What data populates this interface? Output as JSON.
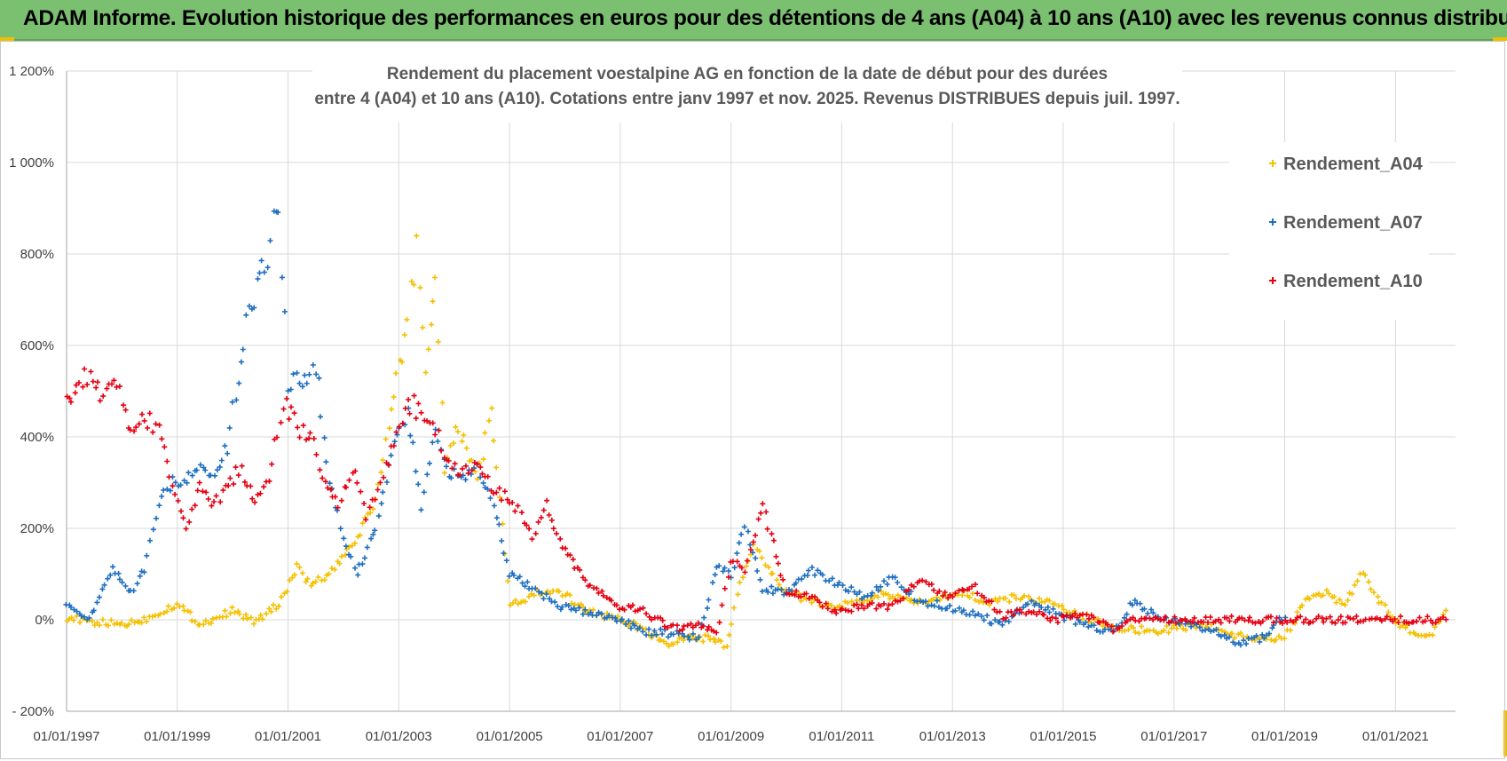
{
  "banner": {
    "text": "ADAM Informe. Evolution historique des performances en euros pour des détentions de 4 ans (A04) à 10 ans (A10) avec les revenus connus distribués"
  },
  "colors": {
    "banner_bg": "#7ac070",
    "Rendement_A04": "#f5c000",
    "Rendement_A07": "#1f6fc0",
    "Rendement_A10": "#e60012",
    "gridline": "#d9d9d9"
  },
  "chart_data": {
    "type": "scatter",
    "marker": "+",
    "title": [
      "Rendement du placement voestalpine AG en fonction de la date de début pour des durées",
      "entre 4 (A04) et 10 ans (A10). Cotations entre janv 1997 et nov. 2025. Revenus DISTRIBUES depuis juil. 1997."
    ],
    "xlabel": "",
    "ylabel": "",
    "x_range": [
      "1997-01-01",
      "2022-02-01"
    ],
    "ylim": [
      -200,
      1200
    ],
    "y_unit": "%",
    "y_ticks": [
      -200,
      0,
      200,
      400,
      600,
      800,
      1000,
      1200
    ],
    "y_tick_labels": [
      "- 200%",
      "0%",
      "200%",
      "400%",
      "600%",
      "800%",
      "1 000%",
      "1 200%"
    ],
    "x_ticks": [
      "1997-01-01",
      "1999-01-01",
      "2001-01-01",
      "2003-01-01",
      "2005-01-01",
      "2007-01-01",
      "2009-01-01",
      "2011-01-01",
      "2013-01-01",
      "2015-01-01",
      "2017-01-01",
      "2019-01-01",
      "2021-01-01"
    ],
    "x_tick_labels": [
      "01/01/1997",
      "01/01/1999",
      "01/01/2001",
      "01/01/2003",
      "01/01/2005",
      "01/01/2007",
      "01/01/2009",
      "01/01/2011",
      "01/01/2013",
      "01/01/2015",
      "01/01/2017",
      "01/01/2019",
      "01/01/2021"
    ],
    "grid": true,
    "legend_position": "top-right",
    "series": [
      {
        "name": "Rendement_A04",
        "x": [
          "1997-01-01",
          "1997-06-01",
          "1998-01-01",
          "1998-06-01",
          "1999-01-01",
          "1999-06-01",
          "2000-01-01",
          "2000-06-01",
          "2000-11-01",
          "2001-03-01",
          "2001-06-01",
          "2001-10-01",
          "2002-03-01",
          "2002-08-01",
          "2002-12-01",
          "2003-03-01",
          "2003-05-01",
          "2003-07-01",
          "2003-09-01",
          "2003-11-01",
          "2004-02-01",
          "2004-06-01",
          "2004-09-01",
          "2004-12-01",
          "2005-01-01",
          "2005-04-01",
          "2005-07-01",
          "2006-01-01",
          "2006-06-01",
          "2007-01-01",
          "2007-06-01",
          "2007-11-01",
          "2008-04-01",
          "2008-08-01",
          "2008-12-01",
          "2009-03-01",
          "2009-06-01",
          "2009-12-01",
          "2010-06-01",
          "2010-12-01",
          "2011-06-01",
          "2011-10-01",
          "2012-03-01",
          "2012-09-01",
          "2013-03-01",
          "2013-09-01",
          "2014-03-01",
          "2014-09-01",
          "2015-03-01",
          "2015-09-01",
          "2016-03-01",
          "2016-09-01",
          "2017-03-01",
          "2017-09-01",
          "2018-03-01",
          "2018-09-01",
          "2019-01-01",
          "2019-06-01",
          "2019-10-01",
          "2020-02-01",
          "2020-06-01",
          "2020-09-01",
          "2021-01-01",
          "2021-06-01",
          "2021-09-01",
          "2021-12-01"
        ],
        "y": [
          5,
          -5,
          -10,
          0,
          35,
          -10,
          20,
          -5,
          35,
          115,
          75,
          100,
          160,
          260,
          480,
          650,
          830,
          540,
          760,
          330,
          420,
          310,
          450,
          140,
          35,
          40,
          60,
          55,
          20,
          0,
          -20,
          -55,
          -40,
          -40,
          -60,
          75,
          165,
          70,
          40,
          30,
          40,
          60,
          40,
          40,
          60,
          35,
          50,
          40,
          15,
          -5,
          -20,
          -25,
          -15,
          -15,
          -35,
          -40,
          -40,
          50,
          60,
          30,
          105,
          50,
          -5,
          -30,
          -30,
          20
        ]
      },
      {
        "name": "Rendement_A07",
        "x": [
          "1997-01-01",
          "1997-06-01",
          "1997-11-01",
          "1998-03-01",
          "1998-06-01",
          "1998-09-01",
          "1998-12-01",
          "1999-03-01",
          "1999-06-01",
          "1999-09-01",
          "1999-12-01",
          "2000-04-01",
          "2000-08-01",
          "2000-11-01",
          "2001-01-01",
          "2001-04-01",
          "2001-07-01",
          "2001-10-01",
          "2002-01-01",
          "2002-04-01",
          "2002-08-01",
          "2002-12-01",
          "2003-03-01",
          "2003-06-01",
          "2003-09-01",
          "2003-12-01",
          "2004-03-01",
          "2004-06-01",
          "2004-09-01",
          "2005-01-01",
          "2005-06-01",
          "2005-12-01",
          "2006-06-01",
          "2007-01-01",
          "2007-06-01",
          "2007-12-01",
          "2008-06-01",
          "2008-10-01",
          "2009-01-01",
          "2009-04-01",
          "2009-08-01",
          "2010-01-01",
          "2010-06-01",
          "2010-12-01",
          "2011-06-01",
          "2011-12-01",
          "2012-06-01",
          "2012-12-01",
          "2013-06-01",
          "2013-12-01",
          "2014-06-01",
          "2014-12-01",
          "2015-06-01",
          "2015-12-01",
          "2016-04-01",
          "2016-09-01",
          "2017-03-01",
          "2017-09-01",
          "2018-03-01",
          "2018-08-01",
          "2019-01-01"
        ],
        "y": [
          40,
          0,
          110,
          60,
          110,
          250,
          300,
          310,
          330,
          300,
          380,
          650,
          780,
          930,
          500,
          530,
          560,
          300,
          180,
          100,
          200,
          400,
          460,
          250,
          400,
          320,
          310,
          330,
          280,
          100,
          70,
          30,
          15,
          0,
          -25,
          -30,
          -40,
          120,
          100,
          210,
          70,
          60,
          110,
          80,
          50,
          90,
          40,
          30,
          10,
          -10,
          40,
          10,
          -10,
          -30,
          40,
          10,
          -10,
          -20,
          -50,
          -40,
          10
        ]
      },
      {
        "name": "Rendement_A10",
        "x": [
          "1997-01-01",
          "1997-05-01",
          "1997-09-01",
          "1997-12-01",
          "1998-03-01",
          "1998-06-01",
          "1998-09-01",
          "1998-12-01",
          "1999-03-01",
          "1999-06-01",
          "1999-09-01",
          "1999-12-01",
          "2000-03-01",
          "2000-06-01",
          "2000-09-01",
          "2000-12-01",
          "2001-03-01",
          "2001-06-01",
          "2001-09-01",
          "2001-12-01",
          "2002-03-01",
          "2002-06-01",
          "2002-09-01",
          "2002-12-01",
          "2003-03-01",
          "2003-06-01",
          "2003-09-01",
          "2003-12-01",
          "2004-03-01",
          "2004-06-01",
          "2004-09-01",
          "2004-12-01",
          "2005-03-01",
          "2005-06-01",
          "2005-09-01",
          "2006-01-01",
          "2006-06-01",
          "2007-01-01",
          "2007-06-01",
          "2007-12-01",
          "2008-06-01",
          "2008-10-01",
          "2009-01-01",
          "2009-04-01",
          "2009-08-01",
          "2010-01-01",
          "2010-06-01",
          "2010-12-01",
          "2011-06-01",
          "2011-12-01",
          "2012-06-01",
          "2012-12-01",
          "2013-06-01",
          "2013-12-01",
          "2014-06-01",
          "2014-12-01",
          "2015-06-01",
          "2015-12-01",
          "2016-03-01",
          "2017-01-01",
          "2018-01-01",
          "2019-01-01",
          "2020-01-01",
          "2021-01-01",
          "2021-12-01"
        ],
        "y": [
          470,
          530,
          500,
          520,
          400,
          440,
          420,
          300,
          200,
          300,
          250,
          300,
          330,
          250,
          310,
          480,
          420,
          400,
          300,
          250,
          330,
          230,
          300,
          380,
          480,
          450,
          420,
          340,
          320,
          340,
          290,
          270,
          240,
          180,
          250,
          150,
          80,
          30,
          20,
          -20,
          -10,
          -30,
          130,
          110,
          250,
          60,
          50,
          20,
          30,
          30,
          90,
          50,
          70,
          10,
          20,
          0,
          10,
          -20,
          0,
          0,
          0,
          0,
          0,
          0,
          0
        ]
      }
    ]
  }
}
